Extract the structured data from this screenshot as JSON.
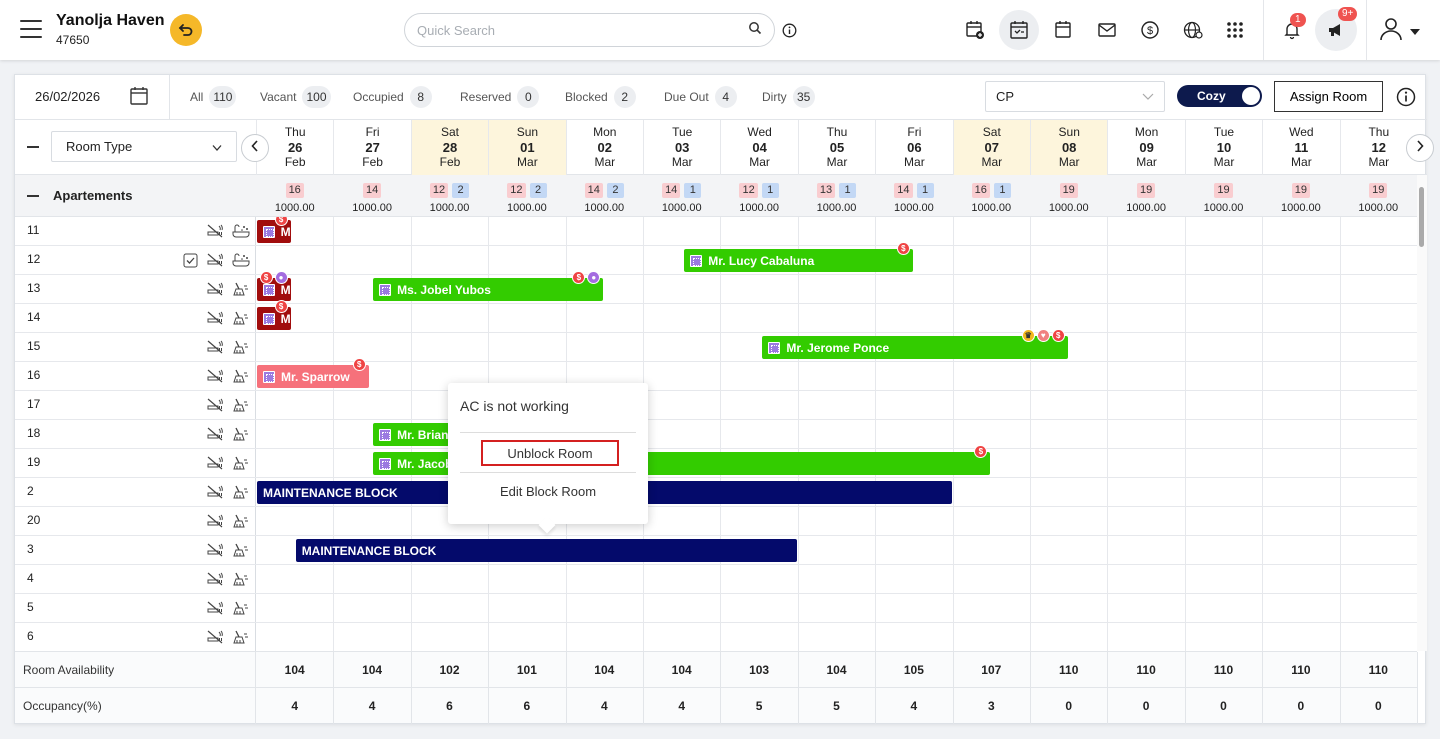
{
  "header": {
    "hotel_name": "Yanolja Haven",
    "hotel_id": "47650",
    "search_placeholder": "Quick Search",
    "notification_count": "1",
    "announcement_count": "9+"
  },
  "filters": {
    "date": "26/02/2026",
    "items": [
      {
        "label": "All",
        "count": "110"
      },
      {
        "label": "Vacant",
        "count": "100"
      },
      {
        "label": "Occupied",
        "count": "8"
      },
      {
        "label": "Reserved",
        "count": "0"
      },
      {
        "label": "Blocked",
        "count": "2"
      },
      {
        "label": "Due Out",
        "count": "4"
      },
      {
        "label": "Dirty",
        "count": "35"
      }
    ],
    "rate_plan": "CP",
    "view_toggle": "Cozy",
    "assign_label": "Assign Room"
  },
  "columns": {
    "room_type_label": "Room Type",
    "days": [
      {
        "dow": "Thu",
        "d": "26",
        "m": "Feb",
        "weekend": false
      },
      {
        "dow": "Fri",
        "d": "27",
        "m": "Feb",
        "weekend": false
      },
      {
        "dow": "Sat",
        "d": "28",
        "m": "Feb",
        "weekend": true
      },
      {
        "dow": "Sun",
        "d": "01",
        "m": "Mar",
        "weekend": true
      },
      {
        "dow": "Mon",
        "d": "02",
        "m": "Mar",
        "weekend": false
      },
      {
        "dow": "Tue",
        "d": "03",
        "m": "Mar",
        "weekend": false
      },
      {
        "dow": "Wed",
        "d": "04",
        "m": "Mar",
        "weekend": false
      },
      {
        "dow": "Thu",
        "d": "05",
        "m": "Mar",
        "weekend": false
      },
      {
        "dow": "Fri",
        "d": "06",
        "m": "Mar",
        "weekend": false
      },
      {
        "dow": "Sat",
        "d": "07",
        "m": "Mar",
        "weekend": true
      },
      {
        "dow": "Sun",
        "d": "08",
        "m": "Mar",
        "weekend": true
      },
      {
        "dow": "Mon",
        "d": "09",
        "m": "Mar",
        "weekend": false
      },
      {
        "dow": "Tue",
        "d": "10",
        "m": "Mar",
        "weekend": false
      },
      {
        "dow": "Wed",
        "d": "11",
        "m": "Mar",
        "weekend": false
      },
      {
        "dow": "Thu",
        "d": "12",
        "m": "Mar",
        "weekend": false
      }
    ]
  },
  "group": {
    "name": "Apartements",
    "cells": [
      {
        "avail": "16",
        "blocked": "",
        "price": "1000.00"
      },
      {
        "avail": "14",
        "blocked": "",
        "price": "1000.00"
      },
      {
        "avail": "12",
        "blocked": "2",
        "price": "1000.00"
      },
      {
        "avail": "12",
        "blocked": "2",
        "price": "1000.00"
      },
      {
        "avail": "14",
        "blocked": "2",
        "price": "1000.00"
      },
      {
        "avail": "14",
        "blocked": "1",
        "price": "1000.00"
      },
      {
        "avail": "12",
        "blocked": "1",
        "price": "1000.00"
      },
      {
        "avail": "13",
        "blocked": "1",
        "price": "1000.00"
      },
      {
        "avail": "14",
        "blocked": "1",
        "price": "1000.00"
      },
      {
        "avail": "16",
        "blocked": "1",
        "price": "1000.00"
      },
      {
        "avail": "19",
        "blocked": "",
        "price": "1000.00"
      },
      {
        "avail": "19",
        "blocked": "",
        "price": "1000.00"
      },
      {
        "avail": "19",
        "blocked": "",
        "price": "1000.00"
      },
      {
        "avail": "19",
        "blocked": "",
        "price": "1000.00"
      },
      {
        "avail": "19",
        "blocked": "",
        "price": "1000.00"
      }
    ]
  },
  "rooms": [
    {
      "no": "11",
      "checked": false,
      "bath": true
    },
    {
      "no": "12",
      "checked": true,
      "bath": true
    },
    {
      "no": "13",
      "checked": false,
      "bath": false
    },
    {
      "no": "14",
      "checked": false,
      "bath": false
    },
    {
      "no": "15",
      "checked": false,
      "bath": false
    },
    {
      "no": "16",
      "checked": false,
      "bath": false
    },
    {
      "no": "17",
      "checked": false,
      "bath": false
    },
    {
      "no": "18",
      "checked": false,
      "bath": false
    },
    {
      "no": "19",
      "checked": false,
      "bath": false
    },
    {
      "no": "2",
      "checked": false,
      "bath": false
    },
    {
      "no": "20",
      "checked": false,
      "bath": false
    },
    {
      "no": "3",
      "checked": false,
      "bath": false
    },
    {
      "no": "4",
      "checked": false,
      "bath": false
    },
    {
      "no": "5",
      "checked": false,
      "bath": false
    },
    {
      "no": "6",
      "checked": false,
      "bath": false
    }
  ],
  "bookings": [
    {
      "row": 0,
      "start": 0,
      "end": 0.46,
      "label": "M",
      "style": "dr",
      "icon": true,
      "dots": [
        "s"
      ]
    },
    {
      "row": 1,
      "start": 5.52,
      "end": 8.5,
      "label": "Mr. Lucy Cabaluna",
      "style": "g",
      "icon": true,
      "dots": [
        "s"
      ]
    },
    {
      "row": 2,
      "start": 0,
      "end": 0.46,
      "label": "M",
      "style": "dr",
      "icon": true,
      "dots": [
        "s",
        "u"
      ]
    },
    {
      "row": 2,
      "start": 1.5,
      "end": 4.5,
      "label": "Ms. Jobel Yubos",
      "style": "g",
      "icon": true,
      "dots": [
        "s",
        "u"
      ]
    },
    {
      "row": 3,
      "start": 0,
      "end": 0.46,
      "label": "M",
      "style": "dr",
      "icon": true,
      "dots": [
        "s"
      ]
    },
    {
      "row": 4,
      "start": 6.53,
      "end": 10.5,
      "label": "Mr. Jerome Ponce",
      "style": "g",
      "icon": true,
      "dots": [
        "c",
        "w",
        "s"
      ]
    },
    {
      "row": 5,
      "start": 0,
      "end": 1.47,
      "label": "Mr. Sparrow",
      "style": "p",
      "icon": true,
      "dots": [
        "s"
      ]
    },
    {
      "row": 7,
      "start": 1.5,
      "end": 3.5,
      "label": "Mr. Brian",
      "style": "g",
      "icon": true,
      "dots": []
    },
    {
      "row": 8,
      "start": 1.5,
      "end": 9.5,
      "label": "Mr. Jacob",
      "style": "g",
      "icon": true,
      "dots": [
        "s"
      ]
    },
    {
      "row": 9,
      "start": 0,
      "end": 9,
      "label": "MAINTENANCE BLOCK",
      "style": "nv",
      "icon": false,
      "dots": []
    },
    {
      "row": 11,
      "start": 0.5,
      "end": 7,
      "label": "MAINTENANCE BLOCK",
      "style": "nv",
      "icon": false,
      "dots": []
    }
  ],
  "popup": {
    "reason": "AC is not working",
    "unblock_label": "Unblock Room",
    "edit_label": "Edit Block Room"
  },
  "footer": {
    "availability_label": "Room Availability",
    "availability": [
      "104",
      "104",
      "102",
      "101",
      "104",
      "104",
      "103",
      "104",
      "105",
      "107",
      "110",
      "110",
      "110",
      "110",
      "110"
    ],
    "occupancy_label": "Occupancy(%)",
    "occupancy": [
      "4",
      "4",
      "6",
      "6",
      "4",
      "4",
      "5",
      "5",
      "4",
      "3",
      "0",
      "0",
      "0",
      "0",
      "0"
    ]
  },
  "colors": {
    "accent_navy": "#0d1a4d",
    "booking_green": "#33cc00",
    "maintenance_block": "#040a6b",
    "weekend_bg": "#fdf5dc",
    "back_button": "#f5b829"
  },
  "icons": [
    "menu-icon",
    "undo-icon",
    "search-icon",
    "info-icon",
    "calendar-add-icon",
    "calendar-check-icon",
    "calendar-icon",
    "mail-icon",
    "dollar-icon",
    "globe-icon",
    "apps-grid-icon",
    "bell-icon",
    "megaphone-icon",
    "user-icon"
  ]
}
